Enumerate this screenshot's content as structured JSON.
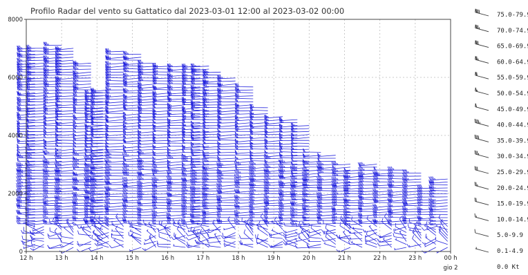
{
  "chart_data": {
    "type": "wind-barb-profile",
    "title": "Profilo Radar del vento su Gattatico dal 2023-03-01 12:00 al 2023-03-02 00:00",
    "ylim": [
      0,
      8000
    ],
    "y_ticks": [
      "0",
      "2000",
      "4000",
      "6000",
      "8000"
    ],
    "x_ticks": [
      "12 h",
      "13 h",
      "14 h",
      "15 h",
      "16 h",
      "17 h",
      "18 h",
      "19 h",
      "20 h",
      "21 h",
      "22 h",
      "23 h",
      "00 h"
    ],
    "x_sublabel": "gio 2",
    "grid": true,
    "legend_position": "right",
    "legend": [
      {
        "label": "75.0-79.9",
        "kt": 77.5
      },
      {
        "label": "70.0-74.9",
        "kt": 72.5
      },
      {
        "label": "65.0-69.9",
        "kt": 67.5
      },
      {
        "label": "60.0-64.9",
        "kt": 62.5
      },
      {
        "label": "55.0-59.9",
        "kt": 57.5
      },
      {
        "label": "50.0-54.9",
        "kt": 52.5
      },
      {
        "label": "45.0-49.9",
        "kt": 47.5
      },
      {
        "label": "40.0-44.9",
        "kt": 42.5
      },
      {
        "label": "35.0-39.9",
        "kt": 37.5
      },
      {
        "label": "30.0-34.9",
        "kt": 32.5
      },
      {
        "label": "25.0-29.9",
        "kt": 27.5
      },
      {
        "label": "20.0-24.9",
        "kt": 22.5
      },
      {
        "label": "15.0-19.9",
        "kt": 17.5
      },
      {
        "label": "10.0-14.9",
        "kt": 12.5
      },
      {
        "label": "5.0-9.9",
        "kt": 7.5
      },
      {
        "label": "0.1-4.9",
        "kt": 2.5
      },
      {
        "label": "0.0 Kt",
        "kt": 0
      }
    ],
    "profiles": [
      {
        "time": "12:15",
        "top": 7100
      },
      {
        "time": "12:30",
        "top": 7050
      },
      {
        "time": "13:00",
        "top": 7200
      },
      {
        "time": "13:20",
        "top": 7100
      },
      {
        "time": "13:50",
        "top": 6550
      },
      {
        "time": "14:10",
        "top": 5500
      },
      {
        "time": "14:20",
        "top": 5650
      },
      {
        "time": "14:45",
        "top": 7000
      },
      {
        "time": "15:15",
        "top": 6900
      },
      {
        "time": "15:40",
        "top": 6550
      },
      {
        "time": "16:05",
        "top": 6400
      },
      {
        "time": "16:30",
        "top": 6450
      },
      {
        "time": "16:55",
        "top": 6400
      },
      {
        "time": "17:10",
        "top": 6450
      },
      {
        "time": "17:30",
        "top": 6200
      },
      {
        "time": "17:55",
        "top": 6000
      },
      {
        "time": "18:25",
        "top": 5700
      },
      {
        "time": "18:50",
        "top": 5000
      },
      {
        "time": "19:15",
        "top": 4700
      },
      {
        "time": "19:40",
        "top": 4600
      },
      {
        "time": "20:00",
        "top": 4400
      },
      {
        "time": "20:20",
        "top": 3450
      },
      {
        "time": "20:45",
        "top": 3350
      },
      {
        "time": "21:10",
        "top": 3050
      },
      {
        "time": "21:30",
        "top": 2900
      },
      {
        "time": "21:55",
        "top": 3050
      },
      {
        "time": "22:20",
        "top": 2900
      },
      {
        "time": "22:45",
        "top": 2900
      },
      {
        "time": "23:10",
        "top": 2800
      },
      {
        "time": "23:35",
        "top": 2250
      },
      {
        "time": "23:55",
        "top": 2600
      }
    ]
  }
}
